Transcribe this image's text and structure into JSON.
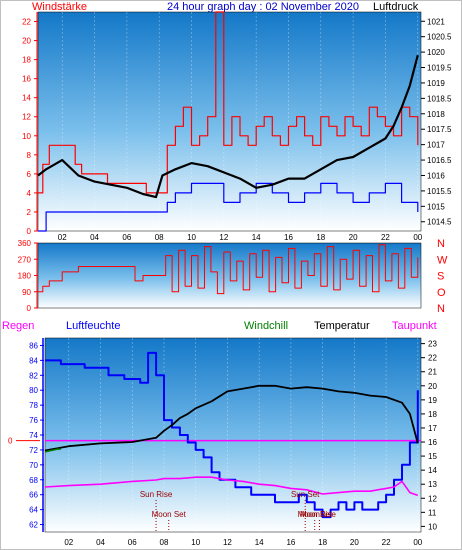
{
  "header": {
    "left_label": "Windstärke",
    "title": "24 hour graph day : 02 November 2020",
    "right_label": "Luftdruck"
  },
  "labels": {
    "rain": "Regen",
    "humidity": "Luftfeuchte",
    "windchill": "Windchill",
    "temperature": "Temperatur",
    "dewpoint": "Taupunkt"
  },
  "compass": [
    "N",
    "W",
    "S",
    "O",
    "N"
  ],
  "events": [
    {
      "label": "Sun Rise",
      "hour": 7.5
    },
    {
      "label": "Moon Set",
      "hour": 8.3
    },
    {
      "label": "Sun Set",
      "hour": 16.9
    },
    {
      "label": "Moon Set",
      "hour": 17.5
    },
    {
      "label": "MoonRise",
      "hour": 17.8
    }
  ],
  "colors": {
    "wind": "#ff0000",
    "gust": "#0000ff",
    "pressure": "#000000",
    "humidity": "#0000ff",
    "temperature": "#000000",
    "dewpoint": "#ff00ff",
    "windchill": "#008000",
    "axis_left": "#ff0000",
    "axis_right": "#000000",
    "panel_top": "#1478c8",
    "panel_bottom": "#ffffff"
  },
  "chart_data": [
    {
      "type": "line",
      "title": "24 hour graph day : 02 November 2020",
      "x_ticks": [
        "02",
        "04",
        "06",
        "08",
        "10",
        "12",
        "14",
        "16",
        "18",
        "20",
        "22",
        "00"
      ],
      "y_left_label": "Windstärke",
      "y_left_ticks": [
        0,
        2,
        4,
        6,
        8,
        10,
        12,
        14,
        16,
        18,
        20,
        22
      ],
      "ylim_left": [
        0,
        23
      ],
      "y_right_label": "Luftdruck",
      "y_right_ticks": [
        1014.5,
        1015,
        1015.5,
        1016,
        1016.5,
        1017,
        1017.5,
        1018,
        1018.5,
        1019,
        1019.5,
        1020,
        1020.5,
        1021
      ],
      "ylim_right": [
        1014.2,
        1021.3
      ],
      "xlim": [
        0.5,
        24.2
      ],
      "series": [
        {
          "name": "Luftdruck",
          "axis": "right",
          "x": [
            0.5,
            1.0,
            2.0,
            3.0,
            4.0,
            5.0,
            6.0,
            7.0,
            7.8,
            8.2,
            9.0,
            10.0,
            11.0,
            12.0,
            13.0,
            14.0,
            15.0,
            16.0,
            17.0,
            18.0,
            19.0,
            20.0,
            21.0,
            22.0,
            22.5,
            23.0,
            23.5,
            24.0
          ],
          "y": [
            1016.0,
            1016.2,
            1016.5,
            1016.0,
            1015.8,
            1015.7,
            1015.6,
            1015.4,
            1015.3,
            1016.0,
            1016.2,
            1016.4,
            1016.3,
            1016.1,
            1015.9,
            1015.6,
            1015.7,
            1015.9,
            1015.9,
            1016.2,
            1016.5,
            1016.6,
            1016.9,
            1017.2,
            1017.6,
            1018.2,
            1018.9,
            1019.9
          ]
        },
        {
          "name": "Windstärke",
          "axis": "left",
          "x": [
            0.5,
            0.8,
            1.2,
            2.0,
            2.8,
            3.2,
            4.0,
            4.8,
            5.6,
            6.4,
            7.2,
            8.0,
            8.5,
            9.0,
            9.5,
            10.0,
            10.5,
            11.0,
            11.5,
            12.0,
            12.5,
            13.0,
            13.5,
            14.0,
            14.5,
            15.0,
            15.5,
            16.0,
            16.5,
            17.0,
            17.5,
            18.0,
            18.5,
            19.0,
            19.5,
            20.0,
            20.5,
            21.0,
            21.5,
            22.0,
            22.5,
            23.0,
            23.5,
            24.0
          ],
          "y": [
            4,
            7,
            9,
            9,
            7,
            6,
            6,
            5,
            5,
            5,
            4,
            4,
            9,
            11,
            13,
            9,
            10,
            12,
            23,
            9,
            12,
            10,
            9,
            11,
            12,
            10,
            9,
            11,
            12,
            10,
            9,
            12,
            11,
            10,
            12,
            11,
            10,
            13,
            12,
            11,
            10,
            13,
            12,
            9
          ]
        },
        {
          "name": "Böen",
          "axis": "left",
          "x": [
            0.5,
            1.0,
            2.0,
            4.0,
            6.0,
            8.0,
            8.5,
            9.0,
            10.0,
            11.0,
            12.0,
            13.0,
            14.0,
            15.0,
            16.0,
            17.0,
            18.0,
            19.0,
            20.0,
            21.0,
            22.0,
            23.0,
            24.0
          ],
          "y": [
            0,
            2,
            2,
            2,
            2,
            2,
            3,
            4,
            5,
            5,
            3,
            4,
            5,
            4,
            3,
            4,
            5,
            4,
            3,
            4,
            5,
            3,
            2
          ]
        }
      ]
    },
    {
      "type": "line",
      "y_ticks": [
        0,
        90,
        180,
        270,
        360
      ],
      "ylim": [
        0,
        360
      ],
      "xlim": [
        0.5,
        24.2
      ],
      "series": [
        {
          "name": "Windrichtung",
          "x": [
            0.5,
            0.8,
            1.2,
            2.0,
            3.0,
            4.0,
            5.0,
            6.0,
            6.5,
            7.0,
            8.0,
            8.4,
            8.8,
            9.2,
            9.6,
            10.0,
            10.4,
            10.8,
            11.2,
            11.6,
            12.0,
            12.4,
            12.8,
            13.2,
            13.6,
            14.0,
            14.4,
            14.8,
            15.2,
            15.6,
            16.0,
            16.4,
            16.8,
            17.2,
            17.6,
            18.0,
            18.4,
            18.8,
            19.2,
            19.6,
            20.0,
            20.4,
            20.8,
            21.2,
            21.6,
            22.0,
            22.4,
            22.8,
            23.2,
            23.6,
            24.0
          ],
          "y": [
            90,
            120,
            150,
            200,
            230,
            230,
            230,
            230,
            150,
            180,
            180,
            290,
            90,
            320,
            120,
            290,
            110,
            340,
            200,
            80,
            310,
            150,
            260,
            100,
            300,
            170,
            320,
            90,
            280,
            140,
            330,
            110,
            260,
            180,
            300,
            120,
            340,
            100,
            270,
            160,
            320,
            120,
            290,
            90,
            350,
            150,
            300,
            110,
            330,
            170,
            280
          ]
        }
      ]
    },
    {
      "type": "line",
      "y_left_label": "Luftfeuchte",
      "y_left_ticks": [
        62,
        64,
        66,
        68,
        70,
        72,
        74,
        76,
        78,
        80,
        82,
        84,
        86
      ],
      "ylim_left": [
        61,
        87
      ],
      "y_right_ticks": [
        10,
        11,
        12,
        13,
        14,
        15,
        16,
        17,
        18,
        19,
        20,
        21,
        22,
        23
      ],
      "ylim_right": [
        9.6,
        23.4
      ],
      "rain_axis_value": 0,
      "xlim": [
        0.5,
        24.2
      ],
      "series": [
        {
          "name": "Luftfeuchte",
          "axis": "left",
          "x": [
            0.5,
            1.5,
            3.0,
            4.5,
            5.5,
            6.5,
            7.0,
            7.5,
            8.0,
            8.5,
            9.0,
            9.5,
            10.0,
            10.5,
            11.0,
            11.5,
            12.0,
            12.5,
            13.0,
            13.5,
            14.0,
            14.5,
            15.0,
            15.5,
            16.0,
            16.5,
            17.0,
            17.5,
            18.0,
            18.5,
            19.0,
            19.5,
            20.0,
            20.5,
            21.0,
            21.5,
            22.0,
            22.5,
            23.0,
            23.5,
            24.0
          ],
          "y": [
            84,
            83.5,
            83,
            82,
            81.5,
            81,
            85,
            82,
            76,
            75,
            74,
            73,
            72,
            71,
            69,
            68,
            68,
            67,
            67,
            66,
            66,
            66,
            65,
            65,
            65,
            66,
            65,
            64,
            63,
            64,
            65,
            64,
            65,
            64,
            64,
            65,
            66,
            68,
            70,
            73,
            80
          ]
        },
        {
          "name": "Temperatur",
          "axis": "right",
          "x": [
            0.5,
            2.0,
            4.0,
            6.0,
            7.5,
            8.0,
            8.5,
            9.0,
            9.5,
            10.0,
            11.0,
            12.0,
            13.0,
            14.0,
            15.0,
            16.0,
            17.0,
            18.0,
            19.0,
            20.0,
            21.0,
            22.0,
            23.0,
            23.5,
            24.0
          ],
          "y": [
            15.4,
            15.7,
            15.9,
            16.0,
            16.3,
            16.8,
            17.2,
            17.7,
            18.0,
            18.4,
            18.9,
            19.6,
            19.8,
            20.0,
            20.0,
            19.8,
            19.9,
            19.8,
            19.6,
            19.5,
            19.3,
            19.2,
            18.8,
            18.0,
            15.9
          ]
        },
        {
          "name": "Taupunkt",
          "axis": "right",
          "x": [
            0.5,
            2.0,
            4.0,
            6.0,
            7.5,
            8.0,
            9.0,
            10.0,
            11.0,
            12.0,
            13.0,
            14.0,
            15.0,
            16.0,
            17.0,
            18.0,
            19.0,
            20.0,
            21.0,
            22.0,
            22.5,
            23.0,
            23.5,
            24.0
          ],
          "y": [
            12.8,
            12.9,
            13.0,
            13.2,
            13.3,
            13.4,
            13.4,
            13.5,
            13.5,
            13.3,
            13.2,
            13.0,
            12.9,
            12.7,
            12.6,
            12.3,
            12.4,
            12.5,
            12.5,
            12.7,
            12.8,
            13.2,
            12.4,
            12.2
          ]
        },
        {
          "name": "Windchill",
          "axis": "right",
          "x": [
            0.5,
            0.9,
            1.3,
            1.5
          ],
          "y": [
            15.3,
            15.4,
            15.5,
            15.5
          ]
        }
      ]
    }
  ]
}
